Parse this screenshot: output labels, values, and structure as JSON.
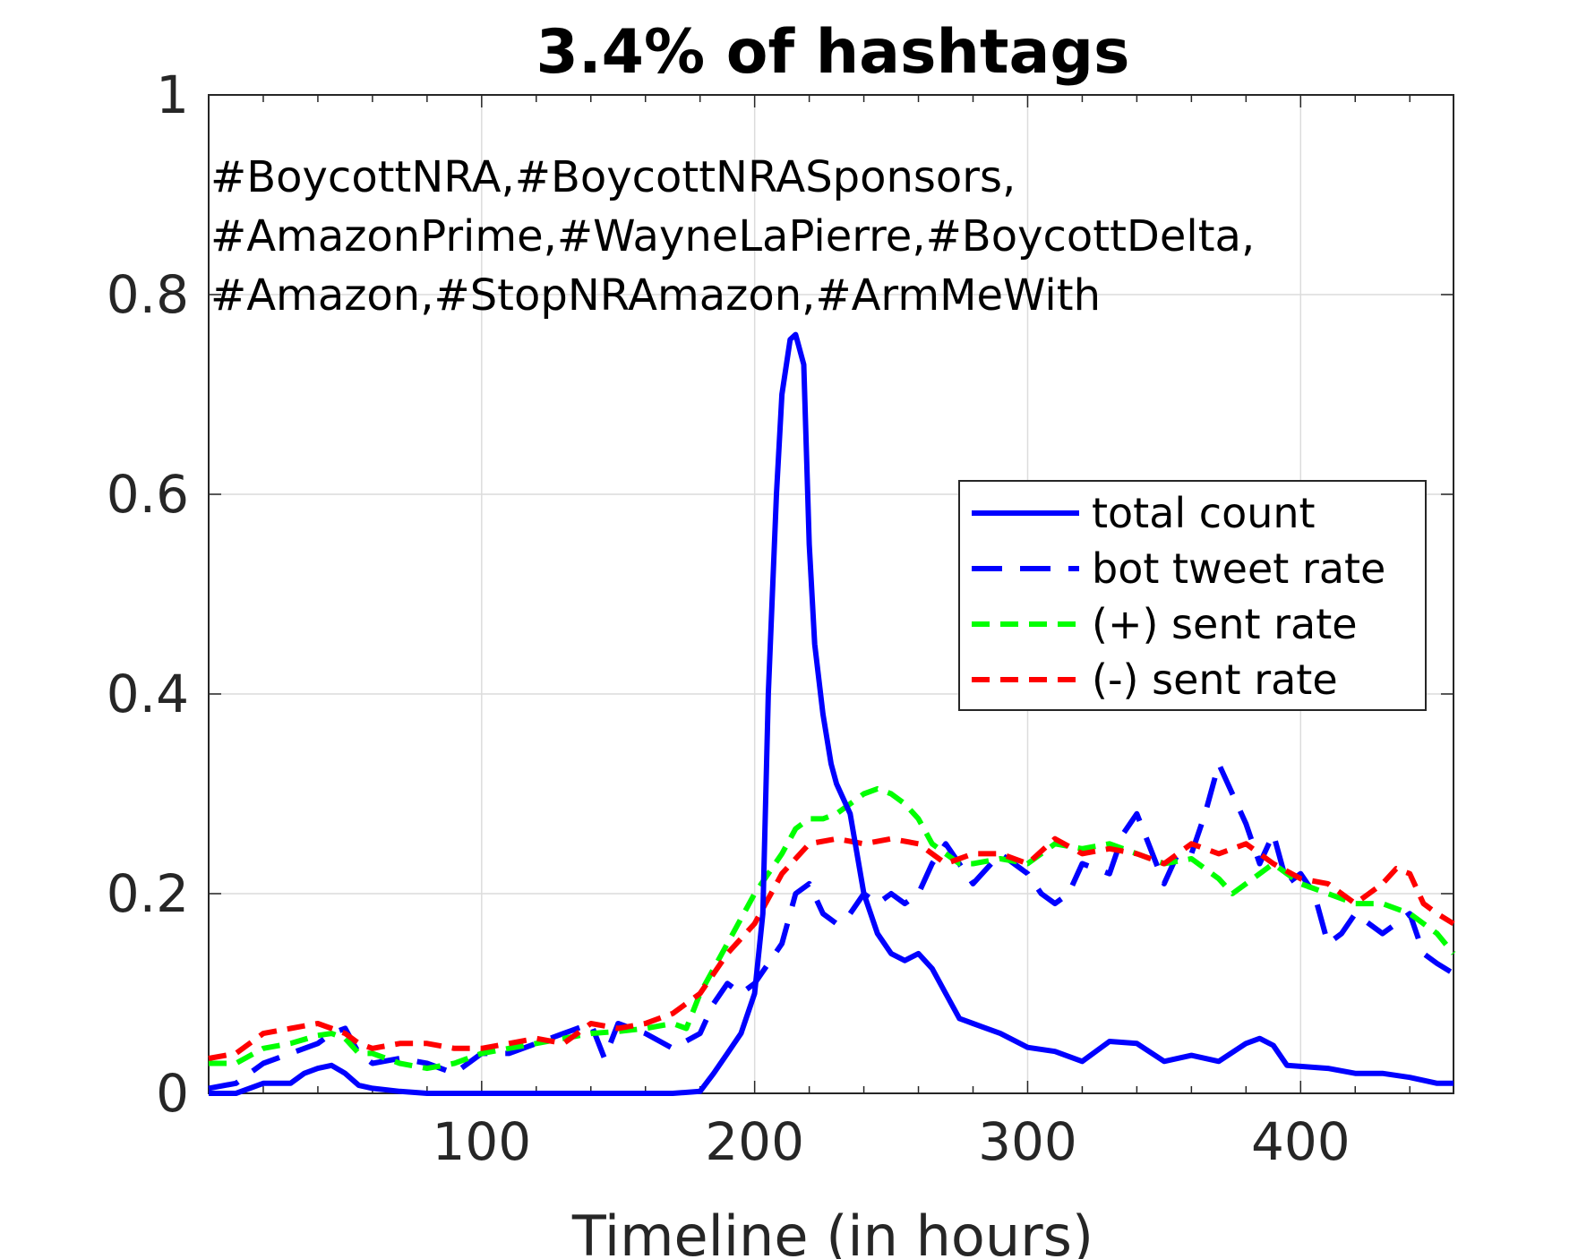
{
  "chart_data": {
    "type": "line",
    "title": "3.4% of hashtags",
    "xlabel": "Timeline (in hours)",
    "ylabel": "",
    "xlim": [
      0,
      456
    ],
    "ylim": [
      0,
      1
    ],
    "xticks": [
      100,
      200,
      300,
      400
    ],
    "xtick_labels": [
      "100",
      "200",
      "300",
      "400"
    ],
    "yticks": [
      0,
      0.2,
      0.4,
      0.6,
      0.8,
      1
    ],
    "ytick_labels": [
      "0",
      "0.2",
      "0.4",
      "0.6",
      "0.8",
      "1"
    ],
    "grid": true,
    "legend_position": "center-right",
    "annotation_lines": [
      "#BoycottNRA,#BoycottNRASponsors,",
      "#AmazonPrime,#WayneLaPierre,#BoycottDelta,",
      "#Amazon,#StopNRAmazon,#ArmMeWith"
    ],
    "series": [
      {
        "name": "total count",
        "color": "#0000ff",
        "style": "solid",
        "x": [
          0,
          10,
          20,
          30,
          35,
          40,
          45,
          50,
          55,
          60,
          70,
          80,
          90,
          100,
          120,
          140,
          160,
          170,
          180,
          185,
          190,
          195,
          200,
          203,
          205,
          208,
          210,
          213,
          215,
          218,
          220,
          222,
          225,
          228,
          230,
          235,
          240,
          245,
          250,
          255,
          260,
          265,
          270,
          275,
          280,
          290,
          300,
          310,
          320,
          330,
          340,
          350,
          360,
          370,
          380,
          385,
          390,
          395,
          400,
          410,
          420,
          430,
          440,
          450,
          456
        ],
        "y": [
          0.0,
          0.0,
          0.01,
          0.01,
          0.02,
          0.025,
          0.028,
          0.02,
          0.008,
          0.005,
          0.002,
          0.0,
          0.0,
          0.0,
          0.0,
          0.0,
          0.0,
          0.0,
          0.002,
          0.02,
          0.04,
          0.06,
          0.1,
          0.18,
          0.4,
          0.6,
          0.7,
          0.755,
          0.76,
          0.73,
          0.55,
          0.45,
          0.38,
          0.33,
          0.31,
          0.28,
          0.2,
          0.16,
          0.14,
          0.133,
          0.14,
          0.125,
          0.1,
          0.075,
          0.07,
          0.06,
          0.046,
          0.042,
          0.032,
          0.052,
          0.05,
          0.032,
          0.038,
          0.032,
          0.05,
          0.055,
          0.048,
          0.028,
          0.027,
          0.025,
          0.02,
          0.02,
          0.016,
          0.01,
          0.01
        ]
      },
      {
        "name": "bot tweet rate",
        "color": "#0000ff",
        "style": "dashed",
        "x": [
          0,
          10,
          20,
          30,
          40,
          45,
          50,
          55,
          60,
          70,
          80,
          90,
          100,
          110,
          120,
          130,
          140,
          145,
          150,
          160,
          170,
          180,
          185,
          190,
          195,
          200,
          205,
          210,
          215,
          220,
          225,
          230,
          235,
          240,
          245,
          250,
          255,
          260,
          265,
          270,
          280,
          290,
          300,
          305,
          310,
          315,
          320,
          330,
          335,
          340,
          350,
          355,
          360,
          365,
          370,
          375,
          380,
          385,
          390,
          395,
          400,
          405,
          410,
          415,
          420,
          430,
          440,
          445,
          450,
          456
        ],
        "y": [
          0.005,
          0.01,
          0.03,
          0.04,
          0.05,
          0.06,
          0.065,
          0.04,
          0.03,
          0.035,
          0.03,
          0.02,
          0.04,
          0.04,
          0.05,
          0.06,
          0.07,
          0.035,
          0.07,
          0.06,
          0.045,
          0.06,
          0.09,
          0.11,
          0.1,
          0.11,
          0.13,
          0.15,
          0.2,
          0.21,
          0.18,
          0.17,
          0.18,
          0.2,
          0.19,
          0.2,
          0.19,
          0.2,
          0.23,
          0.25,
          0.21,
          0.24,
          0.22,
          0.2,
          0.19,
          0.2,
          0.23,
          0.22,
          0.26,
          0.28,
          0.21,
          0.24,
          0.24,
          0.28,
          0.33,
          0.3,
          0.27,
          0.23,
          0.26,
          0.21,
          0.22,
          0.2,
          0.15,
          0.16,
          0.18,
          0.16,
          0.18,
          0.14,
          0.13,
          0.12
        ]
      },
      {
        "name": "(+) sent rate",
        "color": "#00ff00",
        "style": "dashed",
        "x": [
          0,
          10,
          20,
          30,
          40,
          45,
          50,
          55,
          60,
          70,
          80,
          90,
          100,
          110,
          120,
          130,
          140,
          150,
          160,
          170,
          175,
          180,
          190,
          200,
          210,
          215,
          220,
          225,
          230,
          240,
          245,
          250,
          255,
          260,
          265,
          270,
          275,
          280,
          290,
          300,
          310,
          320,
          330,
          340,
          350,
          360,
          370,
          375,
          380,
          390,
          400,
          410,
          420,
          430,
          440,
          450,
          456
        ],
        "y": [
          0.03,
          0.03,
          0.045,
          0.05,
          0.058,
          0.06,
          0.055,
          0.04,
          0.04,
          0.03,
          0.025,
          0.03,
          0.04,
          0.045,
          0.05,
          0.055,
          0.06,
          0.062,
          0.065,
          0.07,
          0.065,
          0.1,
          0.15,
          0.2,
          0.24,
          0.265,
          0.275,
          0.275,
          0.28,
          0.3,
          0.305,
          0.3,
          0.29,
          0.275,
          0.25,
          0.24,
          0.23,
          0.23,
          0.235,
          0.23,
          0.25,
          0.245,
          0.25,
          0.24,
          0.23,
          0.235,
          0.215,
          0.2,
          0.21,
          0.23,
          0.21,
          0.2,
          0.19,
          0.19,
          0.18,
          0.16,
          0.14
        ]
      },
      {
        "name": "(-) sent rate",
        "color": "#ff0000",
        "style": "dashed",
        "x": [
          0,
          10,
          20,
          30,
          40,
          45,
          50,
          55,
          60,
          70,
          80,
          90,
          100,
          110,
          120,
          130,
          140,
          150,
          160,
          170,
          180,
          190,
          200,
          210,
          220,
          230,
          240,
          250,
          260,
          270,
          280,
          290,
          300,
          310,
          320,
          330,
          340,
          350,
          360,
          370,
          380,
          390,
          400,
          410,
          420,
          425,
          430,
          435,
          440,
          445,
          450,
          456
        ],
        "y": [
          0.035,
          0.04,
          0.06,
          0.065,
          0.07,
          0.065,
          0.06,
          0.05,
          0.045,
          0.05,
          0.05,
          0.045,
          0.045,
          0.05,
          0.055,
          0.05,
          0.07,
          0.065,
          0.07,
          0.08,
          0.1,
          0.14,
          0.17,
          0.22,
          0.25,
          0.255,
          0.25,
          0.255,
          0.25,
          0.23,
          0.24,
          0.24,
          0.23,
          0.255,
          0.24,
          0.245,
          0.24,
          0.23,
          0.25,
          0.24,
          0.25,
          0.23,
          0.215,
          0.21,
          0.19,
          0.2,
          0.21,
          0.225,
          0.22,
          0.19,
          0.18,
          0.17
        ]
      }
    ]
  }
}
